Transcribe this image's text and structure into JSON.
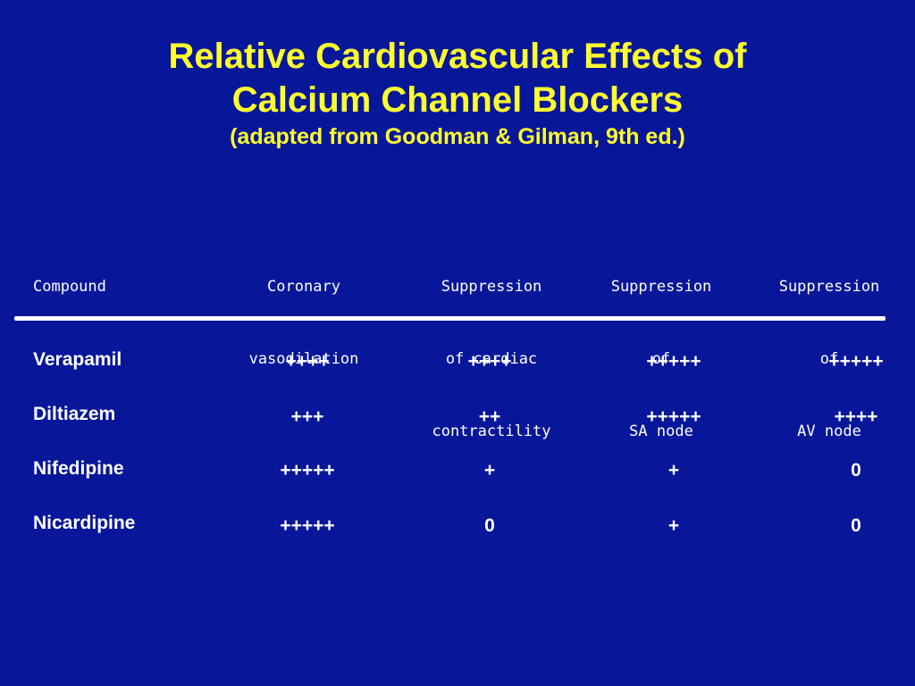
{
  "title": {
    "line1": "Relative Cardiovascular Effects of",
    "line2": "Calcium Channel Blockers",
    "subtitle": "(adapted from Goodman & Gilman, 9th ed.)"
  },
  "table": {
    "headers": [
      [
        "Compound"
      ],
      [
        "Coronary",
        "vasodilation"
      ],
      [
        "Suppression",
        "of cardiac",
        "contractility"
      ],
      [
        "Suppression",
        "of",
        "SA node"
      ],
      [
        "Suppression",
        "of",
        "AV node"
      ]
    ],
    "rows": [
      {
        "compound": "Verapamil",
        "values": [
          "++++",
          "++++",
          "+++++",
          "+++++"
        ]
      },
      {
        "compound": "Diltiazem",
        "values": [
          "+++",
          "++",
          "+++++",
          "++++"
        ]
      },
      {
        "compound": "Nifedipine",
        "values": [
          "+++++",
          "+",
          "+",
          "0"
        ]
      },
      {
        "compound": "Nicardipine",
        "values": [
          "+++++",
          "0",
          "+",
          "0"
        ]
      }
    ]
  },
  "colors": {
    "background": "#08179a",
    "title": "#ffff2e",
    "text": "#ffffff"
  }
}
